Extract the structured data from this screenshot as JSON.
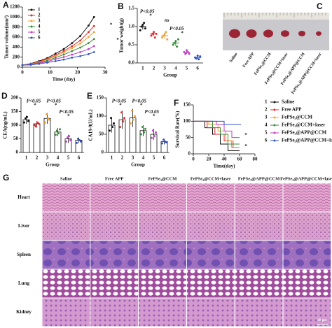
{
  "chart_data": [
    {
      "type": "line",
      "panel": "A",
      "xlabel": "Time (day)",
      "ylabel": "Tumor volume(mm³)",
      "x": [
        0,
        3,
        6,
        9,
        12,
        15,
        18,
        21,
        24,
        26
      ],
      "xlim": [
        0,
        30
      ],
      "xticks": [
        0,
        10,
        20,
        30
      ],
      "ylim": [
        0,
        1200
      ],
      "yticks": [
        0,
        200,
        400,
        600,
        800,
        1000,
        1200
      ],
      "series": [
        {
          "name": "1",
          "color": "#111111",
          "values": [
            40,
            70,
            120,
            180,
            270,
            360,
            480,
            620,
            830,
            1000
          ]
        },
        {
          "name": "2",
          "color": "#e8282a",
          "values": [
            40,
            65,
            110,
            160,
            240,
            320,
            420,
            530,
            700,
            820
          ]
        },
        {
          "name": "3",
          "color": "#f0a030",
          "values": [
            40,
            60,
            100,
            150,
            220,
            290,
            380,
            470,
            600,
            700
          ]
        },
        {
          "name": "4",
          "color": "#3a8a3a",
          "values": [
            40,
            55,
            90,
            130,
            190,
            250,
            320,
            390,
            480,
            560
          ]
        },
        {
          "name": "5",
          "color": "#c040c0",
          "values": [
            40,
            50,
            80,
            110,
            160,
            200,
            250,
            300,
            360,
            420
          ]
        },
        {
          "name": "6",
          "color": "#3050c0",
          "values": [
            40,
            45,
            65,
            90,
            120,
            150,
            190,
            220,
            260,
            300
          ]
        }
      ],
      "annotations": [
        "*",
        "*"
      ]
    },
    {
      "type": "dot",
      "panel": "B",
      "xlabel": "Group",
      "ylabel": "Tumor weight(g)",
      "categories": [
        "1",
        "2",
        "3",
        "4",
        "5",
        "6"
      ],
      "colors": [
        "#111111",
        "#e8282a",
        "#f0a030",
        "#3a8a3a",
        "#c040c0",
        "#3050c0"
      ],
      "ylim": [
        0,
        1.5
      ],
      "yticks": [
        {
          "value": 0,
          "label": "0.0"
        },
        0.5,
        {
          "value": 1,
          "label": "1.0"
        },
        1.5
      ],
      "values": [
        1.0,
        0.8,
        0.75,
        0.55,
        0.29,
        0.15
      ],
      "errors": [
        0.08,
        0.06,
        0.08,
        0.08,
        0.04,
        0.04
      ],
      "points": [
        [
          0.9,
          1.0,
          1.05,
          1.1,
          0.95
        ],
        [
          0.75,
          0.8,
          0.85,
          0.7,
          0.8
        ],
        [
          0.7,
          0.75,
          0.8,
          0.85,
          0.65
        ],
        [
          0.5,
          0.55,
          0.6,
          0.45,
          0.65
        ],
        [
          0.3,
          0.25,
          0.35,
          0.3,
          0.25
        ],
        [
          0.15,
          0.12,
          0.2,
          0.1,
          0.18
        ]
      ],
      "annotations": [
        "P<0.05",
        "*",
        "ns",
        "P<0.05",
        "*"
      ]
    },
    {
      "type": "bar",
      "panel": "D",
      "xlabel": "Group",
      "ylabel": "CEA(ng/mL)",
      "categories": [
        "1",
        "2",
        "3",
        "4",
        "5",
        "6"
      ],
      "colors": [
        "#111111",
        "#e8282a",
        "#f0a030",
        "#3a8a3a",
        "#c040c0",
        "#3050c0"
      ],
      "ylim": [
        0,
        200
      ],
      "yticks": [
        0,
        50,
        100,
        150,
        200
      ],
      "values": [
        120,
        105,
        125,
        75,
        50,
        45
      ],
      "errors": [
        15,
        10,
        20,
        15,
        15,
        10
      ],
      "points": [
        [
          110,
          125,
          130,
          115
        ],
        [
          100,
          95,
          110,
          105
        ],
        [
          110,
          140,
          125,
          120
        ],
        [
          65,
          80,
          70,
          85
        ],
        [
          40,
          55,
          60,
          45
        ],
        [
          35,
          50,
          45,
          40
        ]
      ],
      "annotations": [
        "P<0.05",
        "*",
        "P<0.05",
        "*",
        "P<0.05",
        "*"
      ]
    },
    {
      "type": "bar",
      "panel": "E",
      "xlabel": "Group",
      "ylabel": "CA19-9(U/mL)",
      "categories": [
        "1",
        "2",
        "3",
        "4",
        "5",
        "6"
      ],
      "colors": [
        "#111111",
        "#e8282a",
        "#f0a030",
        "#3a8a3a",
        "#c040c0",
        "#3050c0"
      ],
      "ylim": [
        0,
        150
      ],
      "yticks": [
        0,
        50,
        100,
        150
      ],
      "values": [
        75,
        90,
        95,
        60,
        50,
        30
      ],
      "errors": [
        20,
        25,
        25,
        15,
        15,
        8
      ],
      "points": [
        [
          60,
          95,
          70,
          80
        ],
        [
          70,
          110,
          85,
          95
        ],
        [
          80,
          115,
          90,
          100
        ],
        [
          50,
          70,
          55,
          65
        ],
        [
          40,
          60,
          45,
          55
        ],
        [
          25,
          35,
          30,
          28
        ]
      ],
      "annotations": [
        "P<0.05",
        "*",
        "P<0.05",
        "*",
        "P<0.05",
        "*"
      ]
    },
    {
      "type": "step",
      "panel": "F",
      "xlabel": "Time(day)",
      "ylabel": "Survival Rate(%)",
      "xlim": [
        0,
        80
      ],
      "xticks": [
        0,
        20,
        40,
        60,
        80
      ],
      "ylim": [
        0,
        150
      ],
      "yticks": [
        0,
        50,
        100,
        150
      ],
      "series": [
        {
          "key": "1",
          "name": "Saline",
          "color": "#111111",
          "x": [
            0,
            15,
            15,
            25,
            25,
            35,
            35,
            45,
            45,
            60
          ],
          "values": [
            100,
            100,
            80,
            80,
            60,
            60,
            30,
            30,
            10,
            10
          ]
        },
        {
          "key": "2",
          "name": "Free APP",
          "color": "#e8282a",
          "x": [
            0,
            18,
            18,
            28,
            28,
            40,
            40,
            50,
            50,
            60
          ],
          "values": [
            100,
            100,
            80,
            80,
            60,
            60,
            40,
            40,
            20,
            20
          ]
        },
        {
          "key": "3",
          "name": "FePSe₃@CCM",
          "color": "#f0a030",
          "x": [
            0,
            20,
            20,
            32,
            32,
            42,
            42,
            52,
            52,
            60
          ],
          "values": [
            100,
            100,
            90,
            90,
            70,
            70,
            40,
            40,
            20,
            20
          ]
        },
        {
          "key": "4",
          "name": "FePSe₃@CCM+laser",
          "color": "#3a8a3a",
          "x": [
            0,
            25,
            25,
            35,
            35,
            45,
            45,
            60
          ],
          "values": [
            100,
            100,
            80,
            80,
            60,
            60,
            30,
            30
          ]
        },
        {
          "key": "5",
          "name": "FePSe₃@APP@CCM",
          "color": "#c040c0",
          "x": [
            0,
            30,
            30,
            40,
            40,
            50,
            50,
            60
          ],
          "values": [
            100,
            100,
            90,
            90,
            70,
            70,
            50,
            50
          ]
        },
        {
          "key": "6",
          "name": "FePSe₃@APP@CCM+laser",
          "color": "#3050c0",
          "x": [
            0,
            40,
            40,
            62
          ],
          "values": [
            100,
            100,
            90,
            90
          ]
        }
      ],
      "annotations": [
        "*",
        "*"
      ]
    }
  ],
  "photo": {
    "panel": "C",
    "labels": [
      "Saline",
      "Free APP",
      "FePSe₃@CCM",
      "FePSe₃@CCM+laser",
      "FePSe₃@APP@CCM",
      "FePSe₃@APP@CCM+laser"
    ]
  },
  "histology": {
    "panel": "G",
    "columns": [
      "Saline",
      "Free APP",
      "FePSe₃@CCM",
      "FePSe₃@CCM+laser",
      "FePSe₃@APP@CCM",
      "FePSe₃@APP@CCM+laser"
    ],
    "rows": [
      "Heart",
      "Liver",
      "Spleen",
      "Lung",
      "Kidney"
    ],
    "scale_bar": "50 μm"
  }
}
